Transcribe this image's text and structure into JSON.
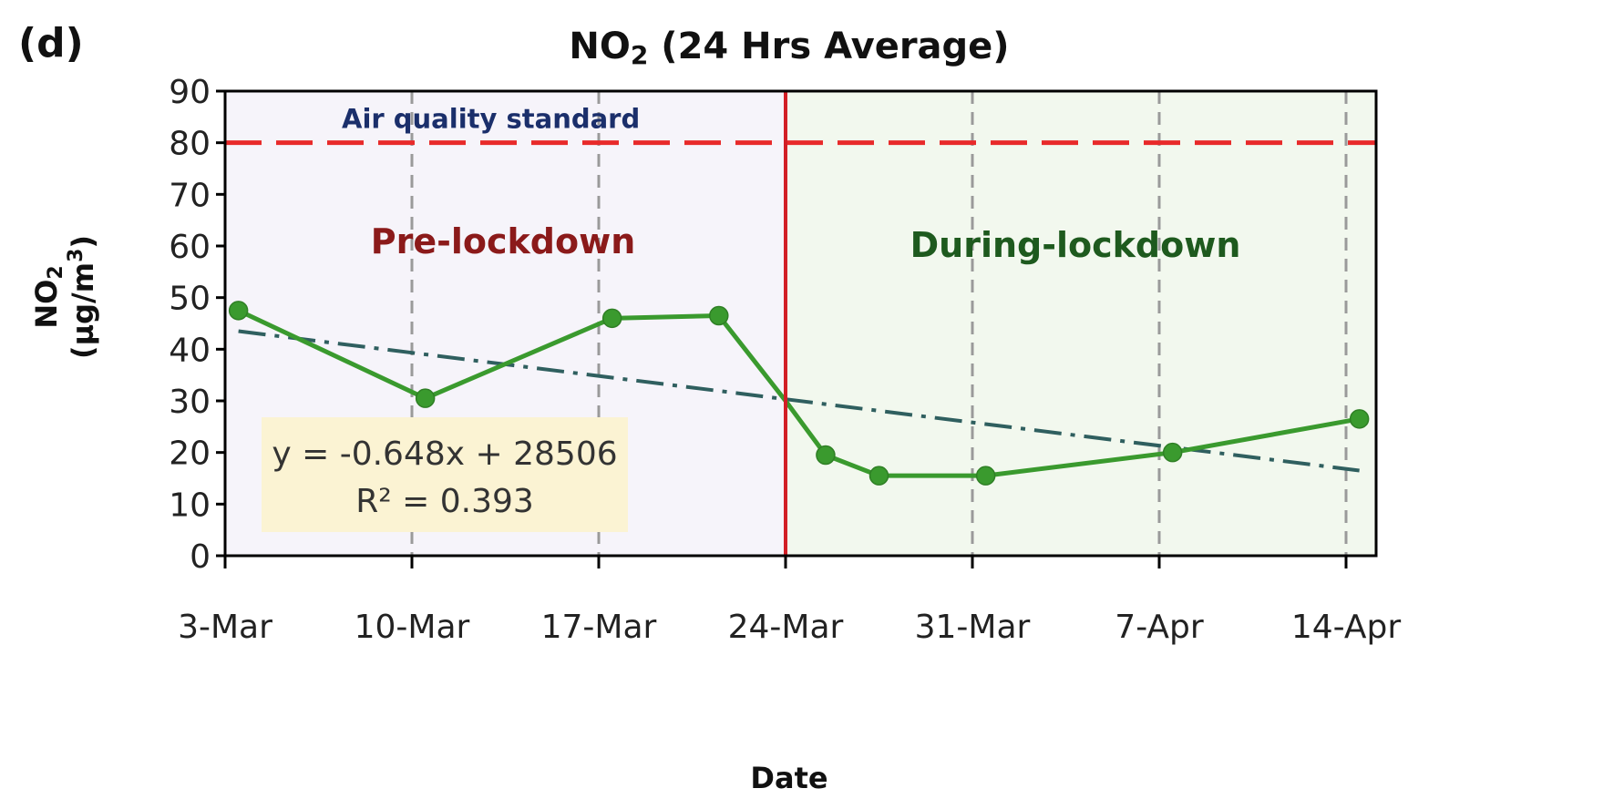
{
  "panel_label": "(d)",
  "chart_data": {
    "type": "line",
    "title_main": "NO",
    "title_sub": "2",
    "title_rest": " (24 Hrs Average)",
    "xlabel": "Date",
    "ylabel_line1_main": "NO",
    "ylabel_line1_sub": "2",
    "ylabel_line2_main": "(µg/m",
    "ylabel_line2_sup": "3",
    "ylabel_line2_end": ")",
    "ylim": [
      0,
      90
    ],
    "yticks": [
      0,
      10,
      20,
      30,
      40,
      50,
      60,
      70,
      80,
      90
    ],
    "xlim": [
      0,
      42
    ],
    "xticks": [
      {
        "x": 0,
        "label": "3-Mar"
      },
      {
        "x": 7,
        "label": "10-Mar"
      },
      {
        "x": 14,
        "label": "17-Mar"
      },
      {
        "x": 21,
        "label": "24-Mar"
      },
      {
        "x": 28,
        "label": "31-Mar"
      },
      {
        "x": 35,
        "label": "7-Apr"
      },
      {
        "x": 42,
        "label": "14-Apr"
      }
    ],
    "series": [
      {
        "color": "#3a9a2e",
        "points": [
          {
            "x": 0.5,
            "date": "3-Mar",
            "y": 47.5
          },
          {
            "x": 7.5,
            "date": "10-Mar",
            "y": 30.5
          },
          {
            "x": 14.5,
            "date": "17-Mar",
            "y": 46
          },
          {
            "x": 18.5,
            "date": "21-Mar",
            "y": 46.5
          },
          {
            "x": 21,
            "date": "24-Mar",
            "y": 30
          },
          {
            "x": 22.5,
            "date": "25-Mar",
            "y": 19.5
          },
          {
            "x": 24.5,
            "date": "27-Mar",
            "y": 15.5
          },
          {
            "x": 28.5,
            "date": "31-Mar",
            "y": 15.5
          },
          {
            "x": 35.5,
            "date": "7-Apr",
            "y": 20
          },
          {
            "x": 42.5,
            "date": "14-Apr",
            "y": 26.5
          }
        ],
        "markers_hidden_at_x": [
          21
        ]
      }
    ],
    "trendline": {
      "color": "#2f5f5f",
      "from": {
        "x": 0.5,
        "y": 43.5
      },
      "to": {
        "x": 42.5,
        "y": 16.5
      },
      "equation": "y = -0.648x + 28506",
      "r2": "R² = 0.393",
      "box_color": "#fbf3d3"
    },
    "standard_line": {
      "y": 80,
      "label": "Air quality standard",
      "color": "#e82a2a",
      "label_color": "#1b2f6b"
    },
    "lockdown_x": 21,
    "regions": [
      {
        "label": "Pre-lockdown",
        "color": "#8b1a1a",
        "fill": "#f6f4fa"
      },
      {
        "label": "During-lockdown",
        "color": "#1e5a1e",
        "fill": "#f2f8ee"
      }
    ],
    "grid": "vertical-dashed"
  }
}
